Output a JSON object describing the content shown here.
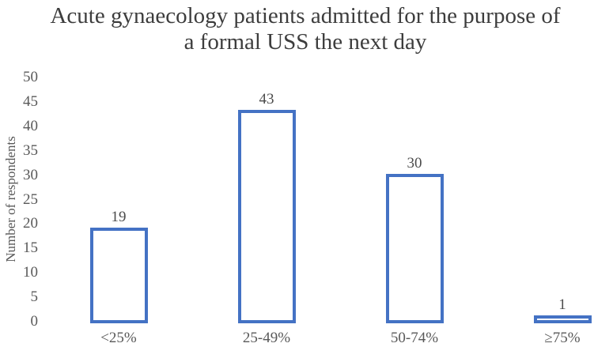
{
  "chart_data": {
    "type": "bar",
    "title": "Acute gynaecology patients admitted for the purpose of a formal USS the next day",
    "xlabel": "",
    "ylabel": "Number of respondents",
    "categories": [
      "<25%",
      "25-49%",
      "50-74%",
      "≥75%"
    ],
    "values": [
      19,
      43,
      30,
      1
    ],
    "data_labels": [
      19,
      43,
      30,
      1
    ],
    "ylim": [
      0,
      50
    ],
    "ytick_step": 5,
    "grid": false,
    "legend": "none",
    "colors": {
      "bar_border": "#4472C4",
      "bar_fill": "#FFFFFF",
      "axis_text": "#595959",
      "value_text": "#4C4C4C",
      "title_text": "#3D3D3D"
    }
  }
}
